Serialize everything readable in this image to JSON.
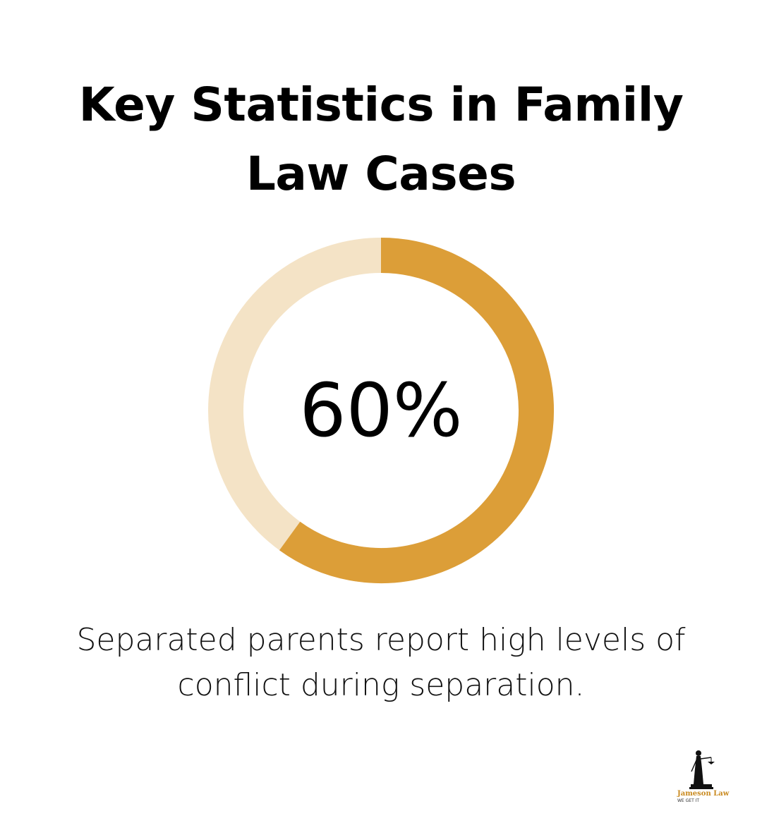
{
  "title": "Key Statistics in Family Law Cases",
  "chart_data": {
    "type": "pie",
    "style": "donut",
    "value_percent": 60,
    "remainder_percent": 40,
    "center_label": "60%",
    "caption": "Separated parents report high levels of conflict during separation.",
    "colors": {
      "value": "#dc9e38",
      "remainder": "#f4e3c6"
    }
  },
  "logo": {
    "name": "Jameson Law",
    "tagline": "WE GET IT"
  }
}
